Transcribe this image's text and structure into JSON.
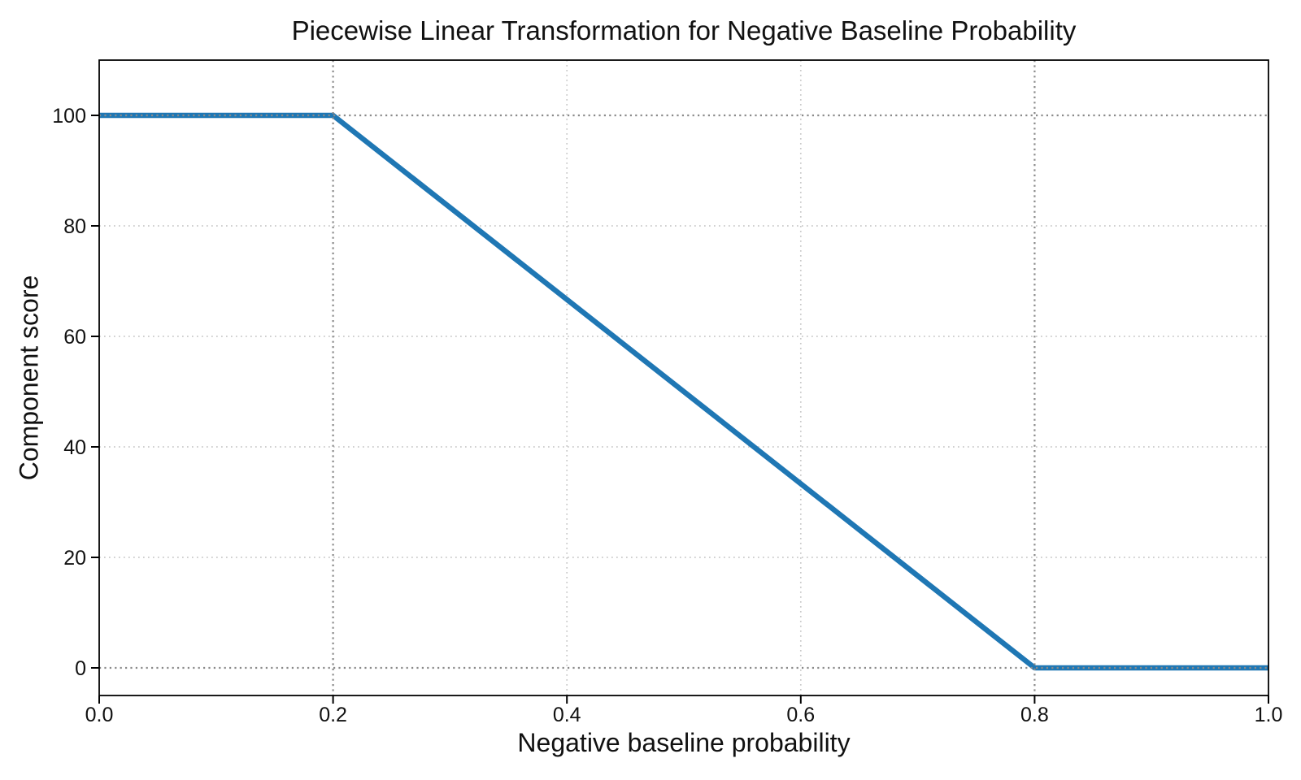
{
  "figure": {
    "background": "#ffffff",
    "text_color": "#111111",
    "spine_color": "#000000"
  },
  "chart_data": {
    "type": "line",
    "title": "Piecewise Linear Transformation for Negative Baseline Probability",
    "xlabel": "Negative baseline probability",
    "ylabel": "Component score",
    "xlim": [
      0.0,
      1.0
    ],
    "ylim": [
      -5,
      110
    ],
    "grid": true,
    "legend_position": "none",
    "xticks": {
      "values": [
        0.0,
        0.2,
        0.4,
        0.6,
        0.8,
        1.0
      ],
      "labels": [
        "0.0",
        "0.2",
        "0.4",
        "0.6",
        "0.8",
        "1.0"
      ]
    },
    "yticks": {
      "values": [
        0,
        20,
        40,
        60,
        80,
        100
      ],
      "labels": [
        "0",
        "20",
        "40",
        "60",
        "80",
        "100"
      ]
    },
    "series": [
      {
        "name": "piecewise-linear-transform",
        "x": [
          0.0,
          0.2,
          0.8,
          1.0
        ],
        "y": [
          100,
          100,
          0,
          0
        ],
        "color": "#1f77b4",
        "line_width": 6.5,
        "style": "solid"
      }
    ],
    "gridlines": {
      "x": [
        0.4,
        0.6
      ],
      "y": [
        20,
        40,
        60,
        80
      ],
      "color": "#c9c9c9",
      "style": "dotted"
    },
    "reference_lines": {
      "x": [
        0.2,
        0.8
      ],
      "y": [
        0,
        100
      ],
      "color": "#8a8a8a",
      "style": "dotted"
    }
  }
}
